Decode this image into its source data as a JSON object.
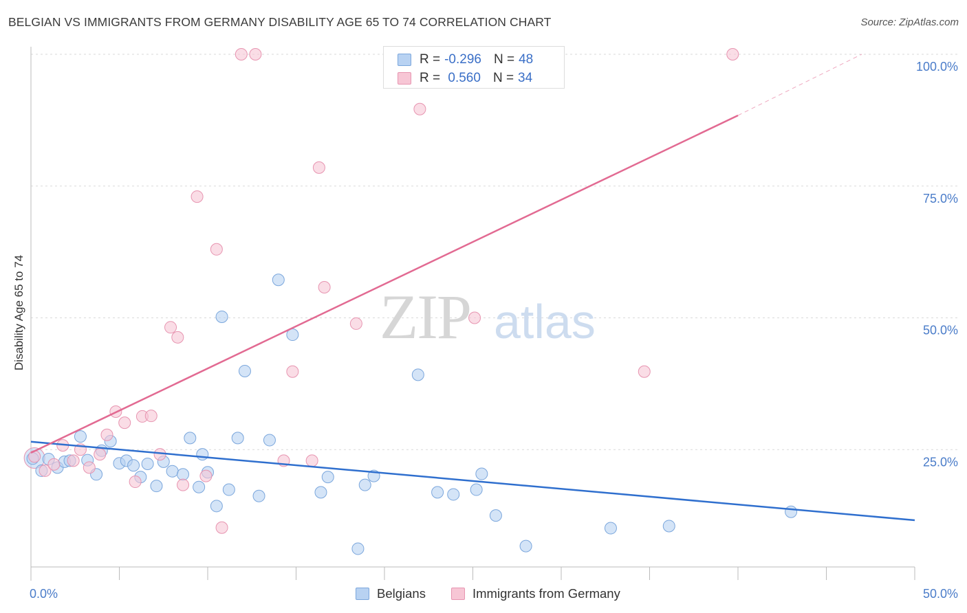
{
  "title": "BELGIAN VS IMMIGRANTS FROM GERMANY DISABILITY AGE 65 TO 74 CORRELATION CHART",
  "source": "Source: ZipAtlas.com",
  "watermark": {
    "part1": "ZIP",
    "part2": "atlas"
  },
  "legend": {
    "rows": [
      {
        "r_label": "R =",
        "r_value": "-0.296",
        "n_label": "N =",
        "n_value": "48"
      },
      {
        "r_label": "R =",
        "r_value": " 0.560",
        "n_label": "N =",
        "n_value": "34"
      }
    ]
  },
  "colors": {
    "blue_fill": "#b8d2f2",
    "blue_stroke": "#7aa6dc",
    "blue_line": "#2f6fce",
    "pink_fill": "#f7c6d5",
    "pink_stroke": "#e794b0",
    "pink_line": "#e26a92",
    "grid": "#d9d9d9",
    "tick_text": "#4a7cc9"
  },
  "chart_data": {
    "type": "scatter",
    "ylabel": "Disability Age 65 to 74",
    "xlabel": "",
    "x_tick_labels": [
      "0.0%",
      "50.0%"
    ],
    "y_tick_labels": [
      "100.0%",
      "75.0%",
      "50.0%",
      "25.0%"
    ],
    "xlim": [
      0,
      50
    ],
    "ylim": [
      0,
      102
    ],
    "y_gridlines": [
      100,
      75,
      50,
      25
    ],
    "series": [
      {
        "name": "Belgians",
        "color": "#b8d2f2",
        "trend": {
          "x": [
            0,
            50
          ],
          "y": [
            26.5,
            11.6
          ]
        },
        "points": [
          [
            0.1,
            23.3
          ],
          [
            1.0,
            23.2
          ],
          [
            1.5,
            21.6
          ],
          [
            1.9,
            22.7
          ],
          [
            2.2,
            22.9
          ],
          [
            2.8,
            27.5
          ],
          [
            3.2,
            23.0
          ],
          [
            3.7,
            20.3
          ],
          [
            4.0,
            24.8
          ],
          [
            4.5,
            26.6
          ],
          [
            5.0,
            22.4
          ],
          [
            5.4,
            22.9
          ],
          [
            5.8,
            22.0
          ],
          [
            6.2,
            19.8
          ],
          [
            6.6,
            22.3
          ],
          [
            7.1,
            18.1
          ],
          [
            7.5,
            22.7
          ],
          [
            8.0,
            20.9
          ],
          [
            8.6,
            20.3
          ],
          [
            9.0,
            27.2
          ],
          [
            9.5,
            17.9
          ],
          [
            9.7,
            24.1
          ],
          [
            10.0,
            20.7
          ],
          [
            10.5,
            14.3
          ],
          [
            10.8,
            50.2
          ],
          [
            11.2,
            17.4
          ],
          [
            11.7,
            27.2
          ],
          [
            12.1,
            39.9
          ],
          [
            12.9,
            16.2
          ],
          [
            13.5,
            26.8
          ],
          [
            14.0,
            57.2
          ],
          [
            14.8,
            46.8
          ],
          [
            16.4,
            16.9
          ],
          [
            16.8,
            19.8
          ],
          [
            18.5,
            6.2
          ],
          [
            18.9,
            18.3
          ],
          [
            19.4,
            20.0
          ],
          [
            21.9,
            39.2
          ],
          [
            23.0,
            16.9
          ],
          [
            23.9,
            16.5
          ],
          [
            25.2,
            17.4
          ],
          [
            25.5,
            20.4
          ],
          [
            26.3,
            12.5
          ],
          [
            28.0,
            6.7
          ],
          [
            32.8,
            10.1
          ],
          [
            36.1,
            10.5
          ],
          [
            43.0,
            13.2
          ],
          [
            0.6,
            21.0
          ]
        ]
      },
      {
        "name": "Immigrants from Germany",
        "color": "#f7c6d5",
        "trend": {
          "x": [
            0,
            40
          ],
          "y": [
            24.4,
            88.4
          ]
        },
        "trend_dashed": {
          "x": [
            40,
            47
          ],
          "y": [
            88.4,
            100
          ]
        },
        "points": [
          [
            0.2,
            23.7
          ],
          [
            0.8,
            21.0
          ],
          [
            1.3,
            22.2
          ],
          [
            1.8,
            25.8
          ],
          [
            2.4,
            22.9
          ],
          [
            2.8,
            25.0
          ],
          [
            3.3,
            21.6
          ],
          [
            3.9,
            24.1
          ],
          [
            4.3,
            27.8
          ],
          [
            4.8,
            32.2
          ],
          [
            5.3,
            30.1
          ],
          [
            5.9,
            18.9
          ],
          [
            6.3,
            31.3
          ],
          [
            6.8,
            31.4
          ],
          [
            7.3,
            24.1
          ],
          [
            7.9,
            48.2
          ],
          [
            8.3,
            46.3
          ],
          [
            8.6,
            18.3
          ],
          [
            9.4,
            73.0
          ],
          [
            9.9,
            20.0
          ],
          [
            10.5,
            63.0
          ],
          [
            10.8,
            10.2
          ],
          [
            11.9,
            100.0
          ],
          [
            12.7,
            100.0
          ],
          [
            14.3,
            22.9
          ],
          [
            14.8,
            39.8
          ],
          [
            15.9,
            22.9
          ],
          [
            16.3,
            78.5
          ],
          [
            16.6,
            55.8
          ],
          [
            18.4,
            48.9
          ],
          [
            22.0,
            89.6
          ],
          [
            25.1,
            50.0
          ],
          [
            34.7,
            39.8
          ],
          [
            39.7,
            100.0
          ]
        ]
      }
    ]
  },
  "bottom_legend": {
    "items": [
      "Belgians",
      "Immigrants from Germany"
    ]
  }
}
